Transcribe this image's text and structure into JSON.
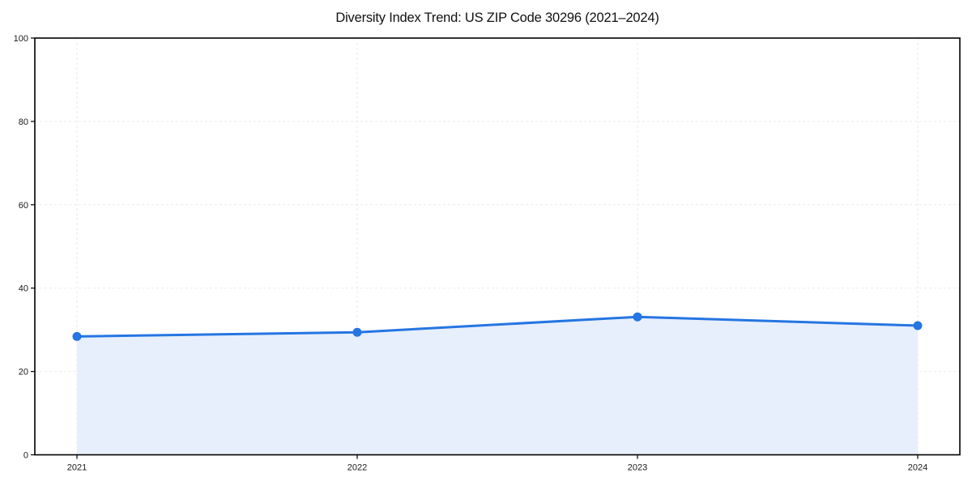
{
  "figure": {
    "title": "Diversity Index Trend: US ZIP Code 30296 (2021–2024)"
  },
  "chart_data": {
    "type": "area",
    "title": "Diversity Index Trend: US ZIP Code 30296 (2021–2024)",
    "categories": [
      "2021",
      "2022",
      "2023",
      "2024"
    ],
    "series": [
      {
        "name": "Diversity Index",
        "values": [
          28.4,
          29.4,
          33.1,
          31.0
        ]
      }
    ],
    "xlabel": "",
    "ylabel": "",
    "ylim": [
      0,
      100
    ],
    "yticks": [
      0,
      20,
      40,
      60,
      80,
      100
    ],
    "grid": "dashed-both-axes",
    "legend": "none",
    "frame": "full-box",
    "colors": {
      "line": "#2575E2",
      "marker": "#2575E2",
      "fill": "#E7EFFC",
      "grid": "#E9E9E9",
      "axis": "#000000",
      "tick_label": "#1a1a1a",
      "title": "#111111",
      "background": "#ffffff"
    },
    "style": {
      "line_width": 3,
      "marker_radius": 5.5,
      "grid_dash": "3 3"
    }
  }
}
